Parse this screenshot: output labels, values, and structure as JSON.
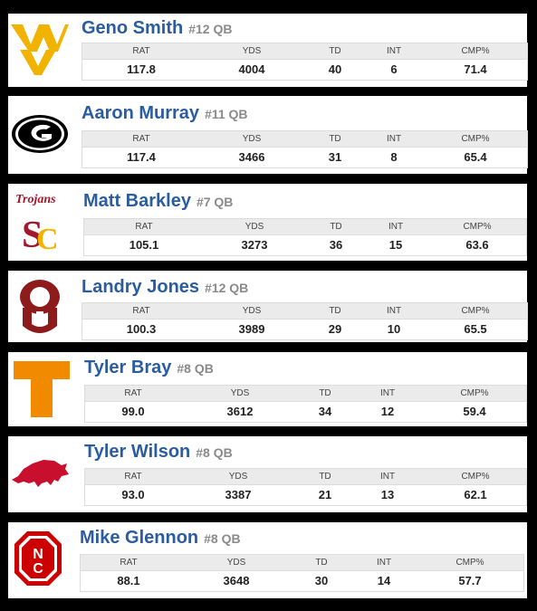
{
  "stat_headers": {
    "rat": "RAT",
    "yds": "YDS",
    "td": "TD",
    "int": "INT",
    "cmp": "CMP%"
  },
  "players": [
    {
      "name": "Geno Smith",
      "number": "#12 QB",
      "logo": "wvu-logo",
      "stats": {
        "rat": "117.8",
        "yds": "4004",
        "td": "40",
        "int": "6",
        "cmp": "71.4"
      }
    },
    {
      "name": "Aaron Murray",
      "number": "#11 QB",
      "logo": "georgia-logo",
      "stats": {
        "rat": "117.4",
        "yds": "3466",
        "td": "31",
        "int": "8",
        "cmp": "65.4"
      }
    },
    {
      "name": "Matt Barkley",
      "number": "#7 QB",
      "logo": "usc-logo",
      "logo_text": "Trojans",
      "stats": {
        "rat": "105.1",
        "yds": "3273",
        "td": "36",
        "int": "15",
        "cmp": "63.6"
      }
    },
    {
      "name": "Landry Jones",
      "number": "#12 QB",
      "logo": "oklahoma-logo",
      "stats": {
        "rat": "100.3",
        "yds": "3989",
        "td": "29",
        "int": "10",
        "cmp": "65.5"
      }
    },
    {
      "name": "Tyler Bray",
      "number": "#8 QB",
      "logo": "tennessee-logo",
      "stats": {
        "rat": "99.0",
        "yds": "3612",
        "td": "34",
        "int": "12",
        "cmp": "59.4"
      }
    },
    {
      "name": "Tyler Wilson",
      "number": "#8 QB",
      "logo": "arkansas-logo",
      "stats": {
        "rat": "93.0",
        "yds": "3387",
        "td": "21",
        "int": "13",
        "cmp": "62.1"
      }
    },
    {
      "name": "Mike Glennon",
      "number": "#8 QB",
      "logo": "nc-state-logo",
      "stats": {
        "rat": "88.1",
        "yds": "3648",
        "td": "30",
        "int": "14",
        "cmp": "57.7"
      }
    }
  ],
  "colors": {
    "name": "#2a5d9f",
    "number": "#8a8a8a",
    "header_bg": "#ebebeb",
    "card_bg": "#ffffff",
    "page_bg": "#000000"
  }
}
